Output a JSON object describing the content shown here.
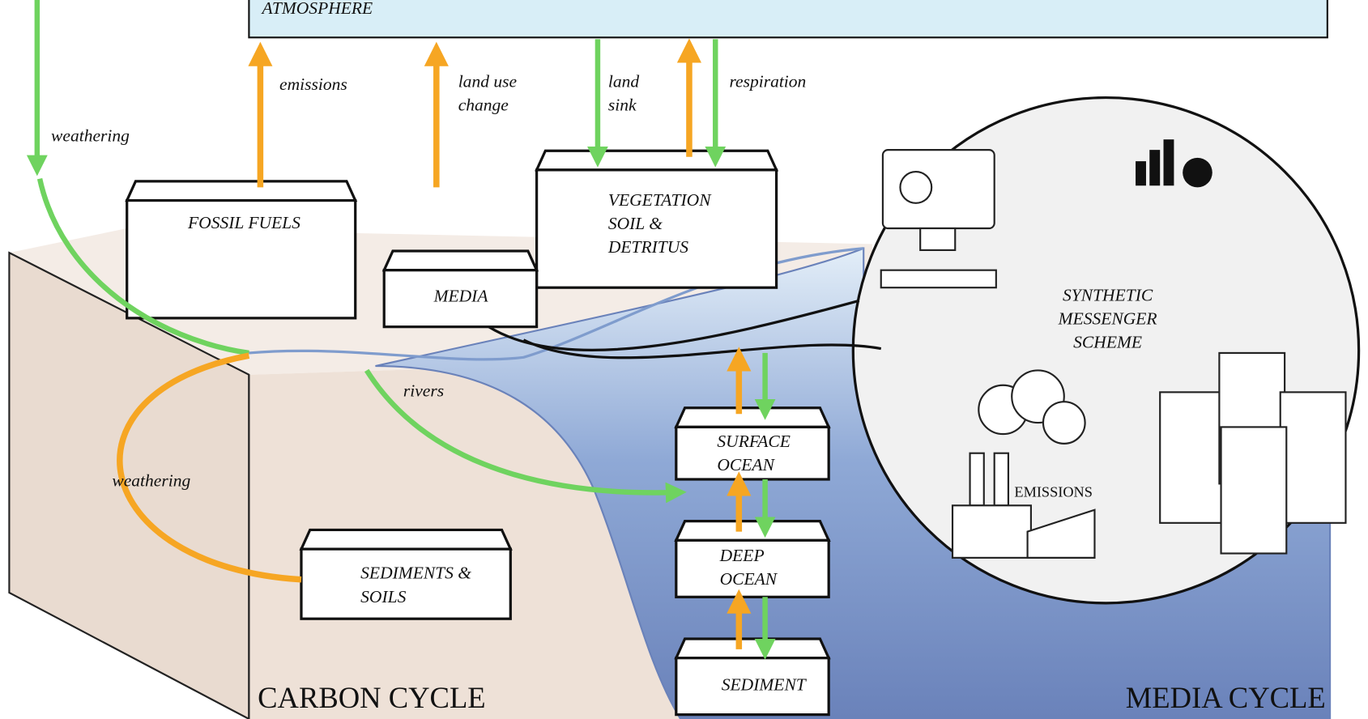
{
  "regions": {
    "atmosphere": "ATMOSPHERE",
    "carbon_cycle": "CARBON CYCLE",
    "media_cycle": "MEDIA CYCLE"
  },
  "boxes": [
    {
      "lines": [
        "FOSSIL FUELS"
      ]
    },
    {
      "lines": [
        "VEGETATION",
        "SOIL &",
        "DETRITUS"
      ]
    },
    {
      "lines": [
        "MEDIA"
      ]
    },
    {
      "lines": [
        "SURFACE",
        "OCEAN"
      ]
    },
    {
      "lines": [
        "DEEP",
        "OCEAN"
      ]
    },
    {
      "lines": [
        "SEDIMENT"
      ]
    },
    {
      "lines": [
        "SEDIMENTS &",
        "SOILS"
      ]
    }
  ],
  "flows": [
    {
      "lines": [
        "emissions"
      ]
    },
    {
      "lines": [
        "land use",
        "change"
      ]
    },
    {
      "lines": [
        "land",
        "sink"
      ]
    },
    {
      "lines": [
        "respiration"
      ]
    },
    {
      "lines": [
        "weathering"
      ]
    },
    {
      "lines": [
        "rivers"
      ]
    },
    {
      "lines": [
        "weathering"
      ]
    }
  ],
  "scheme": {
    "lines": [
      "SYNTHETIC",
      "MESSENGER",
      "SCHEME"
    ],
    "emissions": "EMISSIONS"
  }
}
